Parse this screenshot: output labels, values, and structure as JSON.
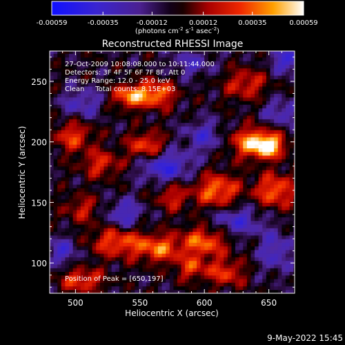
{
  "chart_data": {
    "type": "heatmap",
    "title": "Reconstructed RHESSI Image",
    "xlabel": "Heliocentric X (arcsec)",
    "ylabel": "Heliocentric Y (arcsec)",
    "xlim": [
      480,
      670
    ],
    "ylim": [
      75,
      275
    ],
    "x_ticks": [
      500,
      550,
      600,
      650
    ],
    "y_ticks": [
      100,
      150,
      200,
      250
    ],
    "colorbar": {
      "range": [
        -0.00059,
        0.00059
      ],
      "ticks": [
        "-0.00059",
        "-0.00035",
        "-0.00012",
        "0.00012",
        "0.00035",
        "0.00059"
      ],
      "tick_values": [
        -0.00059,
        -0.00035,
        -0.00012,
        0.00012,
        0.00035,
        0.00059
      ],
      "units_base": "(photons cm",
      "units_exp1": "-2",
      "units_mid": " s",
      "units_exp2": "-1",
      "units_mid2": " asec",
      "units_exp3": "-2",
      "units_end": ")"
    },
    "annotations": {
      "time_range": "27-Oct-2009 10:08:08.000 to 10:11:44.000",
      "detectors": "Detectors: 3F 4F 5F 6F 7F 8F, Att 0",
      "energy": "Energy Range: 12.0 - 25.0 keV",
      "clean": "Clean     Total counts: 8.15E+03",
      "peak": "Position of Peak = [650,197]"
    },
    "peak_position": [
      650,
      197
    ],
    "bright_regions": [
      {
        "x": 650,
        "y": 197,
        "intensity": 1.0,
        "sx": 9,
        "sy": 7
      },
      {
        "x": 542,
        "y": 238,
        "intensity": 0.85,
        "sx": 9,
        "sy": 7
      },
      {
        "x": 563,
        "y": 240,
        "intensity": 0.8,
        "sx": 10,
        "sy": 8
      },
      {
        "x": 610,
        "y": 160,
        "intensity": 0.8,
        "sx": 12,
        "sy": 10
      },
      {
        "x": 655,
        "y": 160,
        "intensity": 0.75,
        "sx": 11,
        "sy": 10
      },
      {
        "x": 533,
        "y": 118,
        "intensity": 0.7,
        "sx": 15,
        "sy": 9
      },
      {
        "x": 565,
        "y": 112,
        "intensity": 0.7,
        "sx": 12,
        "sy": 8
      },
      {
        "x": 600,
        "y": 118,
        "intensity": 0.75,
        "sx": 13,
        "sy": 9
      },
      {
        "x": 617,
        "y": 92,
        "intensity": 0.6,
        "sx": 10,
        "sy": 8
      },
      {
        "x": 505,
        "y": 86,
        "intensity": 0.65,
        "sx": 12,
        "sy": 7
      },
      {
        "x": 555,
        "y": 197,
        "intensity": 0.7,
        "sx": 10,
        "sy": 8
      },
      {
        "x": 635,
        "y": 200,
        "intensity": 0.75,
        "sx": 12,
        "sy": 9
      },
      {
        "x": 498,
        "y": 205,
        "intensity": 0.6,
        "sx": 11,
        "sy": 9
      },
      {
        "x": 520,
        "y": 182,
        "intensity": 0.55,
        "sx": 11,
        "sy": 8
      },
      {
        "x": 632,
        "y": 248,
        "intensity": 0.55,
        "sx": 12,
        "sy": 9
      },
      {
        "x": 575,
        "y": 155,
        "intensity": 0.5,
        "sx": 9,
        "sy": 8
      },
      {
        "x": 505,
        "y": 145,
        "intensity": 0.45,
        "sx": 10,
        "sy": 8
      },
      {
        "x": 590,
        "y": 96,
        "intensity": 0.55,
        "sx": 9,
        "sy": 7
      }
    ],
    "dark_regions": [
      {
        "x": 570,
        "y": 180,
        "intensity": -0.7,
        "sx": 14,
        "sy": 9
      },
      {
        "x": 538,
        "y": 140,
        "intensity": -0.55,
        "sx": 10,
        "sy": 9
      },
      {
        "x": 665,
        "y": 268,
        "intensity": -0.65,
        "sx": 9,
        "sy": 8
      },
      {
        "x": 600,
        "y": 205,
        "intensity": -0.5,
        "sx": 11,
        "sy": 9
      },
      {
        "x": 625,
        "y": 135,
        "intensity": -0.55,
        "sx": 14,
        "sy": 9
      },
      {
        "x": 490,
        "y": 110,
        "intensity": -0.5,
        "sx": 9,
        "sy": 8
      },
      {
        "x": 505,
        "y": 232,
        "intensity": -0.45,
        "sx": 11,
        "sy": 9
      },
      {
        "x": 655,
        "y": 110,
        "intensity": -0.5,
        "sx": 9,
        "sy": 12
      },
      {
        "x": 590,
        "y": 265,
        "intensity": -0.4,
        "sx": 12,
        "sy": 8
      },
      {
        "x": 660,
        "y": 225,
        "intensity": -0.45,
        "sx": 10,
        "sy": 8
      }
    ]
  },
  "footer": {
    "date": "9-May-2022 15:45"
  }
}
